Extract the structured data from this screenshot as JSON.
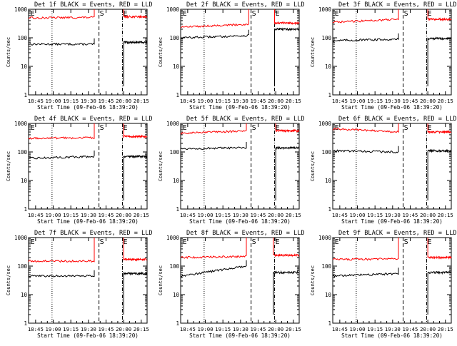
{
  "figure": {
    "description_colors": {
      "events": "#000000",
      "lld": "#ff0000",
      "axes": "#000000",
      "background": "#ffffff"
    }
  },
  "chart_data": [
    {
      "type": "line",
      "id": "det1f",
      "title": "Det 1f BLACK = Events, RED = LLD",
      "ylabel": "Counts/sec",
      "xlabel": "Start Time (09-Feb-06 18:39:20)",
      "yscale": "log",
      "ylim": [
        1,
        1000
      ],
      "ytick_labels": [
        "1",
        "10",
        "100",
        "1000"
      ],
      "x_tick_labels": [
        "18:45",
        "19:00",
        "19:15",
        "19:30",
        "19:45",
        "20:00",
        "20:15"
      ],
      "markers": [
        {
          "label": "E",
          "t": "18:40",
          "style": "dotted-left"
        },
        {
          "label": "S",
          "t": "19:39",
          "style": "dashed"
        },
        {
          "label": "E",
          "t": "19:59",
          "style": "dash-dot"
        }
      ],
      "dotted_line_t": "18:59",
      "series": [
        {
          "name": "Events",
          "color": "#000000",
          "segments": [
            {
              "t0": "18:39",
              "t1": "19:35",
              "level": 60,
              "end_level": 60
            },
            {
              "t0": "20:00",
              "t1": "20:20",
              "level": 70
            }
          ]
        },
        {
          "name": "LLD",
          "color": "#ff0000",
          "segments": [
            {
              "t0": "18:39",
              "t1": "19:35",
              "level": 500,
              "end_level": 520
            },
            {
              "t0": "20:00",
              "t1": "20:20",
              "level": 550
            }
          ]
        }
      ]
    },
    {
      "type": "line",
      "id": "det2f",
      "title": "Det 2f BLACK = Events, RED = LLD",
      "ylabel": "Counts/sec",
      "xlabel": "Start Time (09-Feb-06 18:39:20)",
      "yscale": "log",
      "ylim": [
        1,
        1000
      ],
      "ytick_labels": [
        "1",
        "10",
        "100",
        "1000"
      ],
      "x_tick_labels": [
        "18:45",
        "19:00",
        "19:15",
        "19:30",
        "19:45",
        "20:00",
        "20:15"
      ],
      "markers": [
        {
          "label": "E",
          "t": "18:40",
          "style": "dotted-left"
        },
        {
          "label": "S",
          "t": "19:39",
          "style": "dashed"
        },
        {
          "label": "E",
          "t": "19:59",
          "style": "dash-dot"
        }
      ],
      "dotted_line_t": "18:59",
      "series": [
        {
          "name": "Events",
          "color": "#000000",
          "segments": [
            {
              "t0": "18:39",
              "t1": "19:37",
              "level": 100,
              "end_level": 120
            },
            {
              "t0": "19:59",
              "t1": "20:20",
              "level": 200
            }
          ]
        },
        {
          "name": "LLD",
          "color": "#ff0000",
          "segments": [
            {
              "t0": "18:39",
              "t1": "19:37",
              "level": 240,
              "end_level": 300
            },
            {
              "t0": "19:59",
              "t1": "20:20",
              "level": 330
            }
          ]
        }
      ]
    },
    {
      "type": "line",
      "id": "det3f",
      "title": "Det 3f BLACK = Events, RED = LLD",
      "ylabel": "Counts/sec",
      "xlabel": "Start Time (09-Feb-06 18:39:20)",
      "yscale": "log",
      "ylim": [
        1,
        1000
      ],
      "ytick_labels": [
        "1",
        "10",
        "100",
        "1000"
      ],
      "x_tick_labels": [
        "18:45",
        "19:00",
        "19:15",
        "19:30",
        "19:45",
        "20:00",
        "20:15"
      ],
      "markers": [
        {
          "label": "E",
          "t": "18:40",
          "style": "dotted-left"
        },
        {
          "label": "S",
          "t": "19:39",
          "style": "dashed"
        },
        {
          "label": "E",
          "t": "19:59",
          "style": "dash-dot"
        }
      ],
      "dotted_line_t": "18:59",
      "series": [
        {
          "name": "Events",
          "color": "#000000",
          "segments": [
            {
              "t0": "18:39",
              "t1": "19:35",
              "level": 80,
              "end_level": 90
            },
            {
              "t0": "20:00",
              "t1": "20:20",
              "level": 95
            }
          ]
        },
        {
          "name": "LLD",
          "color": "#ff0000",
          "segments": [
            {
              "t0": "18:39",
              "t1": "19:35",
              "level": 350,
              "end_level": 450
            },
            {
              "t0": "20:00",
              "t1": "20:20",
              "level": 450
            }
          ]
        }
      ]
    },
    {
      "type": "line",
      "id": "det4f",
      "title": "Det 4f BLACK = Events, RED = LLD",
      "ylabel": "Counts/sec",
      "xlabel": "Start Time (09-Feb-06 18:39:20)",
      "yscale": "log",
      "ylim": [
        1,
        1000
      ],
      "ytick_labels": [
        "1",
        "10",
        "100",
        "1000"
      ],
      "x_tick_labels": [
        "18:45",
        "19:00",
        "19:15",
        "19:30",
        "19:45",
        "20:00",
        "20:15"
      ],
      "markers": [
        {
          "label": "E",
          "t": "18:40",
          "style": "dotted-left"
        },
        {
          "label": "S",
          "t": "19:39",
          "style": "dashed"
        },
        {
          "label": "E",
          "t": "19:59",
          "style": "dash-dot"
        }
      ],
      "dotted_line_t": "18:59",
      "series": [
        {
          "name": "Events",
          "color": "#000000",
          "segments": [
            {
              "t0": "18:39",
              "t1": "19:35",
              "level": 60,
              "end_level": 70
            },
            {
              "t0": "20:00",
              "t1": "20:20",
              "level": 70
            }
          ]
        },
        {
          "name": "LLD",
          "color": "#ff0000",
          "segments": [
            {
              "t0": "18:39",
              "t1": "19:35",
              "level": 300,
              "end_level": 320
            },
            {
              "t0": "20:00",
              "t1": "20:20",
              "level": 350
            }
          ]
        }
      ]
    },
    {
      "type": "line",
      "id": "det5f",
      "title": "Det 5f BLACK = Events, RED = LLD",
      "ylabel": "Counts/sec",
      "xlabel": "Start Time (09-Feb-06 18:39:20)",
      "yscale": "log",
      "ylim": [
        1,
        1000
      ],
      "ytick_labels": [
        "1",
        "10",
        "100",
        "1000"
      ],
      "x_tick_labels": [
        "18:45",
        "19:00",
        "19:15",
        "19:30",
        "19:45",
        "20:00",
        "20:15"
      ],
      "markers": [
        {
          "label": "E",
          "t": "18:40",
          "style": "dotted-left"
        },
        {
          "label": "S",
          "t": "19:39",
          "style": "dashed"
        },
        {
          "label": "E",
          "t": "19:59",
          "style": "dash-dot"
        }
      ],
      "dotted_line_t": "18:59",
      "series": [
        {
          "name": "Events",
          "color": "#000000",
          "segments": [
            {
              "t0": "18:39",
              "t1": "19:35",
              "level": 130,
              "end_level": 140
            },
            {
              "t0": "20:00",
              "t1": "20:20",
              "level": 140
            }
          ]
        },
        {
          "name": "LLD",
          "color": "#ff0000",
          "segments": [
            {
              "t0": "18:39",
              "t1": "19:35",
              "level": 450,
              "end_level": 550
            },
            {
              "t0": "20:00",
              "t1": "20:20",
              "level": 550
            }
          ]
        }
      ]
    },
    {
      "type": "line",
      "id": "det6f",
      "title": "Det 6f BLACK = Events, RED = LLD",
      "ylabel": "Counts/sec",
      "xlabel": "Start Time (09-Feb-06 18:39:20)",
      "yscale": "log",
      "ylim": [
        1,
        1000
      ],
      "ytick_labels": [
        "1",
        "10",
        "100",
        "1000"
      ],
      "x_tick_labels": [
        "18:45",
        "19:00",
        "19:15",
        "19:30",
        "19:45",
        "20:00",
        "20:15"
      ],
      "markers": [
        {
          "label": "E",
          "t": "18:40",
          "style": "dotted-left"
        },
        {
          "label": "S",
          "t": "19:39",
          "style": "dashed"
        },
        {
          "label": "E",
          "t": "19:59",
          "style": "dash-dot"
        }
      ],
      "dotted_line_t": "18:59",
      "series": [
        {
          "name": "Events",
          "color": "#000000",
          "segments": [
            {
              "t0": "18:39",
              "t1": "19:35",
              "level": 110,
              "end_level": 100
            },
            {
              "t0": "20:00",
              "t1": "20:20",
              "level": 110
            }
          ]
        },
        {
          "name": "LLD",
          "color": "#ff0000",
          "segments": [
            {
              "t0": "18:39",
              "t1": "19:35",
              "level": 650,
              "end_level": 500
            },
            {
              "t0": "20:00",
              "t1": "20:20",
              "level": 500
            }
          ]
        }
      ]
    },
    {
      "type": "line",
      "id": "det7f",
      "title": "Det 7f BLACK = Events, RED = LLD",
      "ylabel": "Counts/sec",
      "xlabel": "Start Time (09-Feb-06 18:39:20)",
      "yscale": "log",
      "ylim": [
        1,
        1000
      ],
      "ytick_labels": [
        "1",
        "10",
        "100",
        "1000"
      ],
      "x_tick_labels": [
        "18:45",
        "19:00",
        "19:15",
        "19:30",
        "19:45",
        "20:00",
        "20:15"
      ],
      "markers": [
        {
          "label": "E",
          "t": "18:40",
          "style": "dotted-left"
        },
        {
          "label": "S",
          "t": "19:39",
          "style": "dashed"
        },
        {
          "label": "E",
          "t": "19:59",
          "style": "dash-dot"
        }
      ],
      "dotted_line_t": "18:59",
      "series": [
        {
          "name": "Events",
          "color": "#000000",
          "segments": [
            {
              "t0": "18:39",
              "t1": "19:35",
              "level": 45,
              "end_level": 45
            },
            {
              "t0": "20:00",
              "t1": "20:20",
              "level": 55
            }
          ]
        },
        {
          "name": "LLD",
          "color": "#ff0000",
          "segments": [
            {
              "t0": "18:39",
              "t1": "19:35",
              "level": 150,
              "end_level": 150
            },
            {
              "t0": "20:00",
              "t1": "20:20",
              "level": 170
            }
          ]
        }
      ]
    },
    {
      "type": "line",
      "id": "det8f",
      "title": "Det 8f BLACK = Events, RED = LLD",
      "ylabel": "Counts/sec",
      "xlabel": "Start Time (09-Feb-06 18:39:20)",
      "yscale": "log",
      "ylim": [
        1,
        1000
      ],
      "ytick_labels": [
        "1",
        "10",
        "100",
        "1000"
      ],
      "x_tick_labels": [
        "18:45",
        "19:00",
        "19:15",
        "19:30",
        "19:45",
        "20:00",
        "20:15"
      ],
      "markers": [
        {
          "label": "E",
          "t": "18:40",
          "style": "dotted-left"
        },
        {
          "label": "S",
          "t": "19:39",
          "style": "dashed"
        },
        {
          "label": "E",
          "t": "19:59",
          "style": "dash-dot"
        }
      ],
      "dotted_line_t": "18:59",
      "series": [
        {
          "name": "Events",
          "color": "#000000",
          "segments": [
            {
              "t0": "18:39",
              "t1": "19:35",
              "level": 45,
              "end_level": 100
            },
            {
              "t0": "19:58",
              "t1": "20:20",
              "level": 60
            }
          ]
        },
        {
          "name": "LLD",
          "color": "#ff0000",
          "segments": [
            {
              "t0": "18:39",
              "t1": "19:35",
              "level": 200,
              "end_level": 220
            },
            {
              "t0": "19:58",
              "t1": "20:20",
              "level": 240
            }
          ]
        }
      ]
    },
    {
      "type": "line",
      "id": "det9f",
      "title": "Det 9f BLACK = Events, RED = LLD",
      "ylabel": "Counts/sec",
      "xlabel": "Start Time (09-Feb-06 18:39:20)",
      "yscale": "log",
      "ylim": [
        1,
        1000
      ],
      "ytick_labels": [
        "1",
        "10",
        "100",
        "1000"
      ],
      "x_tick_labels": [
        "18:45",
        "19:00",
        "19:15",
        "19:30",
        "19:45",
        "20:00",
        "20:15"
      ],
      "markers": [
        {
          "label": "E",
          "t": "18:40",
          "style": "dotted-left"
        },
        {
          "label": "S",
          "t": "19:39",
          "style": "dashed"
        },
        {
          "label": "E",
          "t": "19:59",
          "style": "dash-dot"
        }
      ],
      "dotted_line_t": "18:59",
      "series": [
        {
          "name": "Events",
          "color": "#000000",
          "segments": [
            {
              "t0": "18:39",
              "t1": "19:35",
              "level": 45,
              "end_level": 55
            },
            {
              "t0": "20:00",
              "t1": "20:20",
              "level": 60
            }
          ]
        },
        {
          "name": "LLD",
          "color": "#ff0000",
          "segments": [
            {
              "t0": "18:39",
              "t1": "19:35",
              "level": 170,
              "end_level": 180
            },
            {
              "t0": "20:00",
              "t1": "20:20",
              "level": 200
            }
          ]
        }
      ]
    }
  ]
}
